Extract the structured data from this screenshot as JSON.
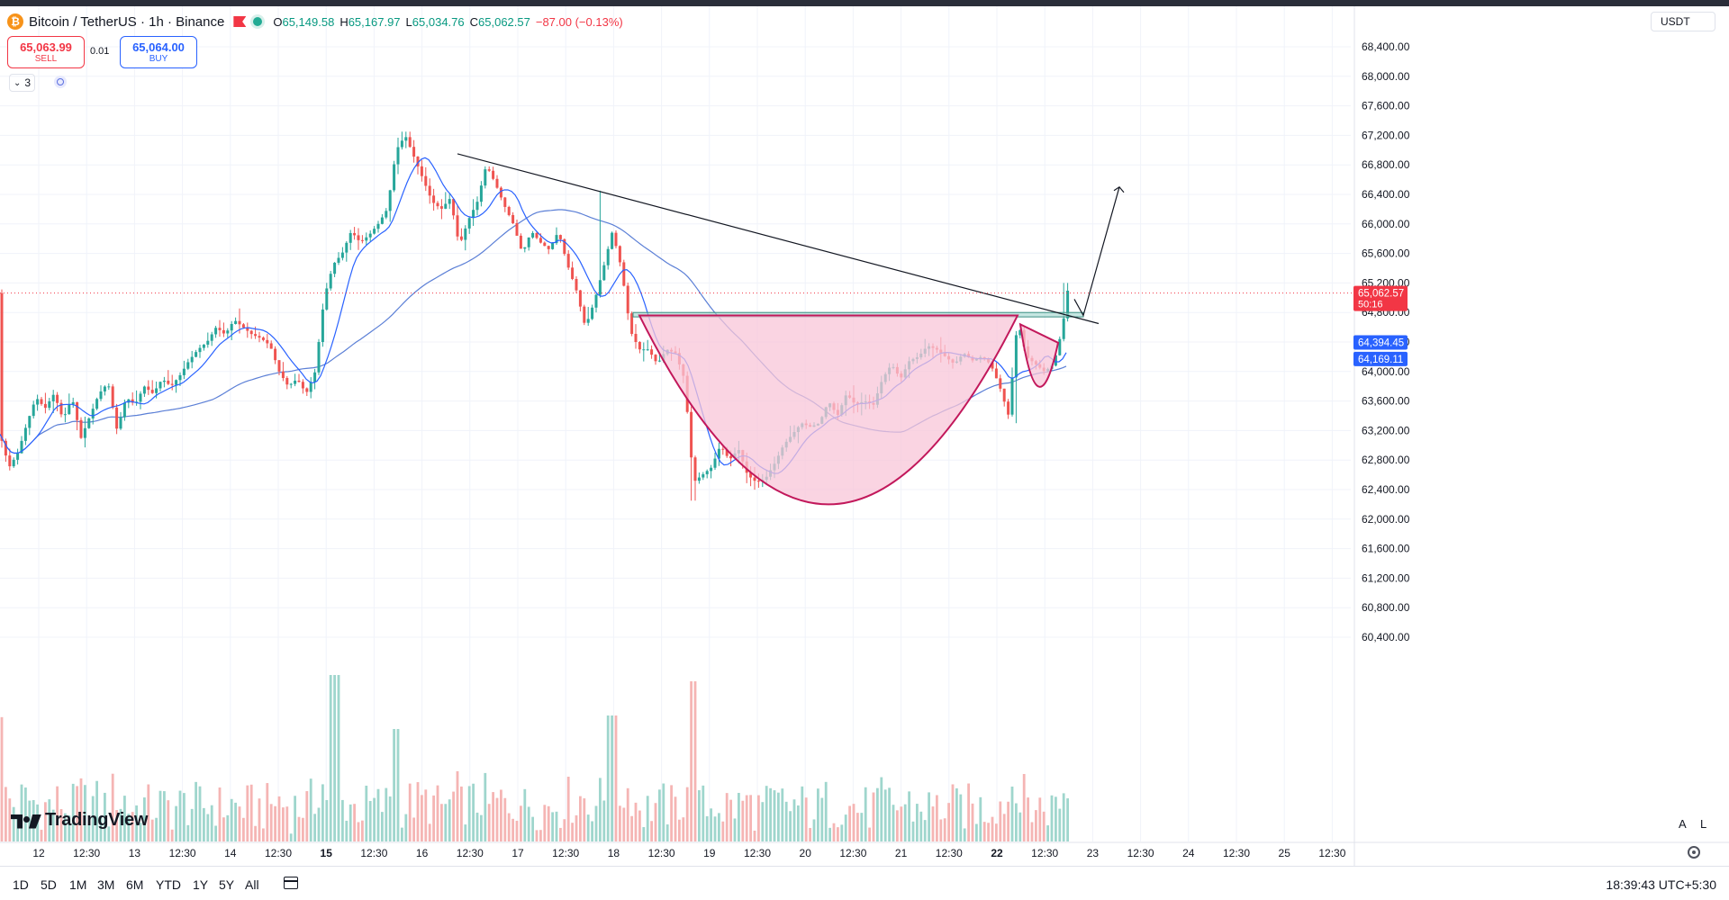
{
  "header": {
    "symbol": "Bitcoin / TetherUS · 1h · Binance",
    "icon": "bitcoin-icon",
    "ohlc": [
      {
        "k": "O",
        "v": "65,149.58"
      },
      {
        "k": "H",
        "v": "65,167.97"
      },
      {
        "k": "L",
        "v": "65,034.76"
      },
      {
        "k": "C",
        "v": "65,062.57"
      }
    ],
    "change": "−87.00 (−0.13%)"
  },
  "trade": {
    "sell_price": "65,063.99",
    "sell_label": "SELL",
    "spread": "0.01",
    "buy_price": "65,064.00",
    "buy_label": "BUY"
  },
  "indicators_count": "3",
  "currency": "USDT",
  "logo_text": "TradingView",
  "price_scale_modes": {
    "a": "A",
    "l": "L"
  },
  "ranges": [
    "1D",
    "5D",
    "1M",
    "3M",
    "6M",
    "YTD",
    "1Y",
    "5Y",
    "All"
  ],
  "clock": "18:39:43 UTC+5:30",
  "colors": {
    "up": "#26a69a",
    "down": "#ef5350",
    "ma_fast": "#2962ff",
    "ma_slow": "#5b7fd6",
    "pattern_fill": "#f8c6d8",
    "pattern_stroke": "#c2185b",
    "zone": "#9fd6cd"
  },
  "chart_data": {
    "type": "candlestick",
    "symbol": "BTCUSDT",
    "interval": "1h",
    "y_axis": {
      "ticks": [
        68400,
        68000,
        67600,
        67200,
        66800,
        66400,
        66000,
        65600,
        65200,
        64800,
        64400,
        64000,
        63600,
        63200,
        62800,
        62400,
        62000,
        61600,
        61200,
        60800,
        60400
      ],
      "tick_labels": [
        "68,400.00",
        "68,000.00",
        "67,600.00",
        "67,200.00",
        "66,800.00",
        "66,400.00",
        "66,000.00",
        "65,600.00",
        "65,200.00",
        "64,800.00",
        "64,400.00",
        "64,000.00",
        "63,600.00",
        "63,200.00",
        "62,800.00",
        "62,400.00",
        "62,000.00",
        "61,600.00",
        "61,200.00",
        "60,800.00",
        "60,400.00"
      ]
    },
    "x_axis": {
      "ticks": [
        "12",
        "12:30",
        "13",
        "12:30",
        "14",
        "12:30",
        "15",
        "12:30",
        "16",
        "12:30",
        "17",
        "12:30",
        "18",
        "12:30",
        "19",
        "12:30",
        "20",
        "12:30",
        "21",
        "12:30",
        "22",
        "12:30",
        "23",
        "12:30",
        "24",
        "12:30",
        "25",
        "12:30"
      ],
      "bold_ticks": [
        "15",
        "22"
      ]
    },
    "price_labels": [
      {
        "value": 65062.57,
        "text": "65,062.57",
        "sub": "50:16",
        "color": "#f23645"
      },
      {
        "value": 64394.45,
        "text": "64,394.45",
        "color": "#2962ff"
      },
      {
        "value": 64169.11,
        "text": "64,169.11",
        "color": "#2962ff"
      }
    ],
    "close_path": [
      [
        0,
        63150
      ],
      [
        10,
        62700
      ],
      [
        20,
        62900
      ],
      [
        30,
        63300
      ],
      [
        40,
        63650
      ],
      [
        50,
        63500
      ],
      [
        60,
        63700
      ],
      [
        70,
        63350
      ],
      [
        80,
        63650
      ],
      [
        90,
        63100
      ],
      [
        100,
        63400
      ],
      [
        110,
        63700
      ],
      [
        120,
        63850
      ],
      [
        130,
        63200
      ],
      [
        140,
        63650
      ],
      [
        150,
        63550
      ],
      [
        160,
        63800
      ],
      [
        170,
        63700
      ],
      [
        180,
        63900
      ],
      [
        190,
        63800
      ],
      [
        200,
        63950
      ],
      [
        210,
        64150
      ],
      [
        220,
        64300
      ],
      [
        230,
        64400
      ],
      [
        240,
        64600
      ],
      [
        250,
        64500
      ],
      [
        260,
        64700
      ],
      [
        270,
        64600
      ],
      [
        280,
        64500
      ],
      [
        290,
        64450
      ],
      [
        300,
        64350
      ],
      [
        310,
        64000
      ],
      [
        320,
        63800
      ],
      [
        330,
        63900
      ],
      [
        340,
        63700
      ],
      [
        350,
        64000
      ],
      [
        360,
        65000
      ],
      [
        370,
        65450
      ],
      [
        380,
        65600
      ],
      [
        390,
        65900
      ],
      [
        400,
        65750
      ],
      [
        410,
        65850
      ],
      [
        420,
        66000
      ],
      [
        430,
        66200
      ],
      [
        440,
        67000
      ],
      [
        450,
        67200
      ],
      [
        460,
        66900
      ],
      [
        470,
        66600
      ],
      [
        480,
        66300
      ],
      [
        490,
        66200
      ],
      [
        500,
        66350
      ],
      [
        510,
        65700
      ],
      [
        520,
        66050
      ],
      [
        530,
        66300
      ],
      [
        540,
        66800
      ],
      [
        550,
        66550
      ],
      [
        560,
        66250
      ],
      [
        570,
        66000
      ],
      [
        580,
        65600
      ],
      [
        590,
        65900
      ],
      [
        600,
        65750
      ],
      [
        610,
        65650
      ],
      [
        620,
        65900
      ],
      [
        630,
        65450
      ],
      [
        640,
        65100
      ],
      [
        650,
        64600
      ],
      [
        660,
        64950
      ],
      [
        670,
        65400
      ],
      [
        680,
        65900
      ],
      [
        690,
        65400
      ],
      [
        700,
        64550
      ],
      [
        710,
        64300
      ],
      [
        720,
        64300
      ],
      [
        730,
        64100
      ],
      [
        740,
        64300
      ],
      [
        750,
        64250
      ],
      [
        760,
        63900
      ],
      [
        770,
        62500
      ],
      [
        780,
        62600
      ],
      [
        790,
        62700
      ],
      [
        800,
        63000
      ],
      [
        810,
        62800
      ],
      [
        820,
        62950
      ],
      [
        830,
        62600
      ],
      [
        840,
        62500
      ],
      [
        850,
        62550
      ],
      [
        860,
        62750
      ],
      [
        870,
        63000
      ],
      [
        880,
        63150
      ],
      [
        890,
        63300
      ],
      [
        900,
        63250
      ],
      [
        910,
        63300
      ],
      [
        920,
        63600
      ],
      [
        930,
        63400
      ],
      [
        940,
        63700
      ],
      [
        950,
        63550
      ],
      [
        960,
        63600
      ],
      [
        970,
        63550
      ],
      [
        980,
        63900
      ],
      [
        990,
        64100
      ],
      [
        1000,
        63900
      ],
      [
        1010,
        64150
      ],
      [
        1020,
        64200
      ],
      [
        1030,
        64350
      ],
      [
        1040,
        64300
      ],
      [
        1050,
        64200
      ],
      [
        1060,
        64100
      ],
      [
        1070,
        64250
      ],
      [
        1080,
        64150
      ],
      [
        1090,
        64200
      ],
      [
        1100,
        64100
      ],
      [
        1110,
        63800
      ],
      [
        1120,
        63400
      ],
      [
        1130,
        64700
      ],
      [
        1140,
        64200
      ],
      [
        1150,
        64100
      ],
      [
        1160,
        64000
      ],
      [
        1170,
        64100
      ],
      [
        1180,
        64600
      ],
      [
        1185,
        65100
      ],
      [
        1190,
        65062
      ]
    ],
    "trendline": {
      "p1": [
        508,
        66950
      ],
      "p2": [
        1220,
        64650
      ]
    },
    "zone": {
      "x1": 703,
      "x2": 1203,
      "y_top": 64800,
      "y_bottom": 64740
    },
    "cup": {
      "left": [
        710,
        64760
      ],
      "bottom": [
        920,
        62200
      ],
      "right": [
        1130,
        64760
      ]
    },
    "handle": {
      "left": [
        1133,
        64640
      ],
      "bottom": [
        1152,
        63860
      ],
      "right": [
        1175,
        64390
      ]
    },
    "projection": [
      [
        1193,
        64980
      ],
      [
        1203,
        64760
      ],
      [
        1243,
        66500
      ]
    ]
  }
}
